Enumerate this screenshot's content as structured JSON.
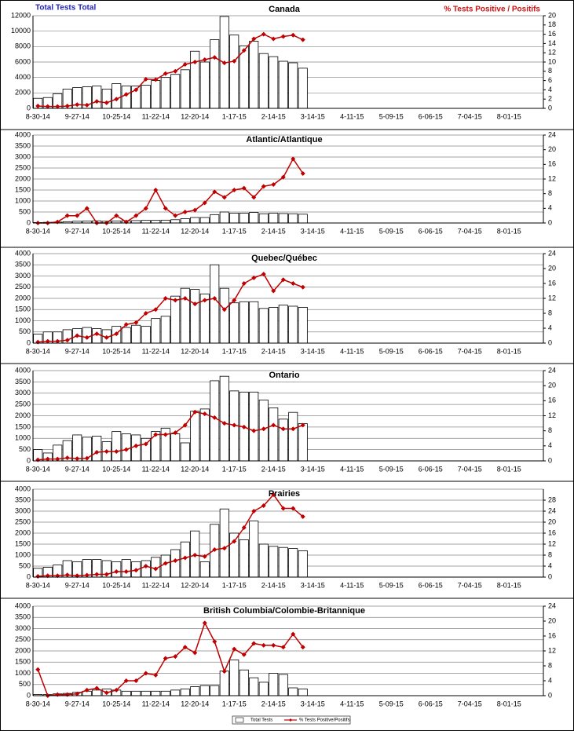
{
  "chart_data": [
    {
      "type": "bar",
      "title": "Canada",
      "y_label": "Total Tests Total",
      "y2_label": "% Tests Positive / Positifs",
      "categories": [
        "8-30-14",
        null,
        null,
        null,
        "9-27-14",
        null,
        null,
        null,
        "10-25-14",
        null,
        null,
        null,
        "11-22-14",
        null,
        null,
        null,
        "12-20-14",
        null,
        null,
        null,
        "1-17-15",
        null,
        null,
        null,
        "2-14-15",
        null,
        null,
        null,
        "3-14-15",
        null,
        null,
        null,
        "4-11-15",
        null,
        null,
        null,
        "5-09-15",
        null,
        null,
        null,
        "6-06-15",
        null,
        null,
        null,
        "7-04-15",
        null,
        null,
        null,
        "8-01-15",
        null,
        null,
        null
      ],
      "ylim": [
        0,
        12000
      ],
      "yticks": [
        0,
        2000,
        4000,
        6000,
        8000,
        10000,
        12000
      ],
      "y2lim": [
        0,
        20
      ],
      "y2ticks": [
        0,
        2,
        4,
        6,
        8,
        10,
        12,
        14,
        16,
        18,
        20
      ],
      "grid": true,
      "series": [
        {
          "color": "#ffffff",
          "values": [
            1300,
            1400,
            1900,
            2500,
            2700,
            2800,
            2900,
            2500,
            3200,
            2900,
            2900,
            3000,
            3600,
            4000,
            4400,
            5000,
            7400,
            6000,
            8900,
            11900,
            9500,
            8100,
            8700,
            7100,
            6700,
            6100,
            5900,
            5200,
            null,
            null,
            null,
            null,
            null,
            null,
            null,
            null,
            null,
            null,
            null,
            null,
            null,
            null,
            null,
            null,
            null,
            null,
            null,
            null,
            null,
            null,
            null,
            null
          ]
        },
        {
          "color": "#c00000",
          "axis": "y2",
          "values": [
            0.5,
            0.4,
            0.4,
            0.5,
            0.8,
            0.7,
            1.5,
            1.2,
            2,
            3,
            4,
            6.3,
            6.2,
            7.5,
            8,
            9.5,
            10,
            10.5,
            11,
            9.8,
            10.2,
            12.5,
            15,
            16,
            15,
            15.5,
            15.8,
            14.8,
            null,
            null,
            null,
            null,
            null,
            null,
            null,
            null,
            null,
            null,
            null,
            null,
            null,
            null,
            null,
            null,
            null,
            null,
            null,
            null,
            null,
            null,
            null,
            null
          ]
        }
      ]
    },
    {
      "type": "bar",
      "title": "Atlantic/Atlantique",
      "categories": [
        "8-30-14",
        null,
        null,
        null,
        "9-27-14",
        null,
        null,
        null,
        "10-25-14",
        null,
        null,
        null,
        "11-22-14",
        null,
        null,
        null,
        "12-20-14",
        null,
        null,
        null,
        "1-17-15",
        null,
        null,
        null,
        "2-14-15",
        null,
        null,
        null,
        "3-14-15",
        null,
        null,
        null,
        "4-11-15",
        null,
        null,
        null,
        "5-09-15",
        null,
        null,
        null,
        "6-06-15",
        null,
        null,
        null,
        "7-04-15",
        null,
        null,
        null,
        "8-01-15",
        null,
        null,
        null
      ],
      "ylim": [
        0,
        4000
      ],
      "yticks": [
        0,
        500,
        1000,
        1500,
        2000,
        2500,
        3000,
        3500,
        4000
      ],
      "y2lim": [
        0,
        24
      ],
      "y2ticks": [
        0,
        4,
        8,
        12,
        16,
        20,
        24
      ],
      "grid": true,
      "series": [
        {
          "color": "#ffffff",
          "values": [
            20,
            30,
            40,
            60,
            80,
            90,
            100,
            80,
            90,
            100,
            110,
            120,
            120,
            130,
            150,
            200,
            250,
            250,
            380,
            500,
            450,
            450,
            480,
            420,
            450,
            430,
            420,
            400,
            null,
            null,
            null,
            null,
            null,
            null,
            null,
            null,
            null,
            null,
            null,
            null,
            null,
            null,
            null,
            null,
            null,
            null,
            null,
            null,
            null,
            null,
            null,
            null
          ]
        },
        {
          "color": "#c00000",
          "axis": "y2",
          "values": [
            0,
            0,
            0.3,
            2,
            2,
            4,
            0,
            0,
            2,
            0.3,
            2,
            4,
            9,
            4,
            2,
            3,
            3.5,
            5.5,
            8.5,
            7,
            9,
            9.5,
            7,
            10,
            10.5,
            12.5,
            17.5,
            13.5,
            null,
            null,
            null,
            null,
            null,
            null,
            null,
            null,
            null,
            null,
            null,
            null,
            null,
            null,
            null,
            null,
            null,
            null,
            null,
            null,
            null,
            null,
            null,
            null
          ]
        }
      ]
    },
    {
      "type": "bar",
      "title": "Quebec/Québec",
      "categories": [
        "8-30-14",
        null,
        null,
        null,
        "9-27-14",
        null,
        null,
        null,
        "10-25-14",
        null,
        null,
        null,
        "11-22-14",
        null,
        null,
        null,
        "12-20-14",
        null,
        null,
        null,
        "1-17-15",
        null,
        null,
        null,
        "2-14-15",
        null,
        null,
        null,
        "3-14-15",
        null,
        null,
        null,
        "4-11-15",
        null,
        null,
        null,
        "5-09-15",
        null,
        null,
        null,
        "6-06-15",
        null,
        null,
        null,
        "7-04-15",
        null,
        null,
        null,
        "8-01-15",
        null,
        null,
        null
      ],
      "ylim": [
        0,
        4000
      ],
      "yticks": [
        0,
        500,
        1000,
        1500,
        2000,
        2500,
        3000,
        3500,
        4000
      ],
      "y2lim": [
        0,
        24
      ],
      "y2ticks": [
        0,
        4,
        8,
        12,
        16,
        20,
        24
      ],
      "grid": true,
      "series": [
        {
          "color": "#ffffff",
          "values": [
            400,
            500,
            500,
            600,
            650,
            700,
            650,
            600,
            750,
            700,
            800,
            750,
            1100,
            1200,
            2100,
            2450,
            2400,
            2200,
            3500,
            2450,
            1800,
            1850,
            1850,
            1550,
            1600,
            1700,
            1650,
            1600,
            null,
            null,
            null,
            null,
            null,
            null,
            null,
            null,
            null,
            null,
            null,
            null,
            null,
            null,
            null,
            null,
            null,
            null,
            null,
            null,
            null,
            null,
            null,
            null
          ]
        },
        {
          "color": "#c00000",
          "axis": "y2",
          "values": [
            0.3,
            0.5,
            0.5,
            0.8,
            2,
            1.5,
            2.5,
            1.5,
            2.5,
            5,
            5.5,
            8,
            9,
            12,
            11.5,
            12,
            10.5,
            11.5,
            12,
            9,
            11.5,
            16,
            17.5,
            18.5,
            14,
            17,
            16,
            15,
            null,
            null,
            null,
            null,
            null,
            null,
            null,
            null,
            null,
            null,
            null,
            null,
            null,
            null,
            null,
            null,
            null,
            null,
            null,
            null,
            null,
            null,
            null,
            null
          ]
        }
      ]
    },
    {
      "type": "bar",
      "title": "Ontario",
      "categories": [
        "8-30-14",
        null,
        null,
        null,
        "9-27-14",
        null,
        null,
        null,
        "10-25-14",
        null,
        null,
        null,
        "11-22-14",
        null,
        null,
        null,
        "12-20-14",
        null,
        null,
        null,
        "1-17-15",
        null,
        null,
        null,
        "2-14-15",
        null,
        null,
        null,
        "3-14-15",
        null,
        null,
        null,
        "4-11-15",
        null,
        null,
        null,
        "5-09-15",
        null,
        null,
        null,
        "6-06-15",
        null,
        null,
        null,
        "7-04-15",
        null,
        null,
        null,
        "8-01-15",
        null,
        null,
        null
      ],
      "ylim": [
        0,
        4000
      ],
      "yticks": [
        0,
        500,
        1000,
        1500,
        2000,
        2500,
        3000,
        3500,
        4000
      ],
      "y2lim": [
        0,
        24
      ],
      "y2ticks": [
        0,
        4,
        8,
        12,
        16,
        20,
        24
      ],
      "grid": true,
      "series": [
        {
          "color": "#ffffff",
          "values": [
            500,
            350,
            700,
            900,
            1150,
            1050,
            1100,
            850,
            1300,
            1200,
            1150,
            1000,
            1300,
            1450,
            1200,
            800,
            2200,
            2300,
            3550,
            3750,
            3100,
            3050,
            3050,
            2700,
            2350,
            1850,
            2150,
            1650,
            null,
            null,
            null,
            null,
            null,
            null,
            null,
            null,
            null,
            null,
            null,
            null,
            null,
            null,
            null,
            null,
            null,
            null,
            null,
            null,
            null,
            null,
            null,
            null
          ]
        },
        {
          "color": "#c00000",
          "axis": "y2",
          "values": [
            0.3,
            0.5,
            0.5,
            0.8,
            0.6,
            0.7,
            2.3,
            2.5,
            2.5,
            3,
            4,
            4.5,
            7,
            7,
            7.5,
            9.5,
            13,
            12.5,
            11.5,
            10,
            9.5,
            9,
            8,
            8.5,
            9.5,
            8.5,
            8.5,
            9.5,
            null,
            null,
            null,
            null,
            null,
            null,
            null,
            null,
            null,
            null,
            null,
            null,
            null,
            null,
            null,
            null,
            null,
            null,
            null,
            null,
            null,
            null,
            null,
            null
          ]
        }
      ]
    },
    {
      "type": "bar",
      "title": "Prairies",
      "categories": [
        "8-30-14",
        null,
        null,
        null,
        "9-27-14",
        null,
        null,
        null,
        "10-25-14",
        null,
        null,
        null,
        "11-22-14",
        null,
        null,
        null,
        "12-20-14",
        null,
        null,
        null,
        "1-17-15",
        null,
        null,
        null,
        "2-14-15",
        null,
        null,
        null,
        "3-14-15",
        null,
        null,
        null,
        "4-11-15",
        null,
        null,
        null,
        "5-09-15",
        null,
        null,
        null,
        "6-06-15",
        null,
        null,
        null,
        "7-04-15",
        null,
        null,
        null,
        "8-01-15",
        null,
        null,
        null
      ],
      "ylim": [
        0,
        4000
      ],
      "yticks": [
        0,
        500,
        1000,
        1500,
        2000,
        2500,
        3000,
        3500,
        4000
      ],
      "y2lim": [
        0,
        32
      ],
      "y2ticks": [
        0,
        4,
        8,
        12,
        16,
        20,
        24,
        28
      ],
      "grid": true,
      "series": [
        {
          "color": "#ffffff",
          "values": [
            400,
            450,
            550,
            750,
            700,
            800,
            800,
            750,
            700,
            800,
            700,
            750,
            900,
            1000,
            1250,
            1600,
            2100,
            700,
            2400,
            3100,
            2000,
            1700,
            2550,
            1500,
            1400,
            1350,
            1300,
            1200,
            null,
            null,
            null,
            null,
            null,
            null,
            null,
            null,
            null,
            null,
            null,
            null,
            null,
            null,
            null,
            null,
            null,
            null,
            null,
            null,
            null,
            null,
            null,
            null
          ]
        },
        {
          "color": "#c00000",
          "axis": "y2",
          "values": [
            0.3,
            0.5,
            0.5,
            0.8,
            0.5,
            0.7,
            1,
            1,
            2,
            2,
            2.5,
            4,
            3,
            5,
            6,
            7,
            8,
            7.5,
            10,
            10.5,
            13,
            18,
            24,
            26,
            30,
            25,
            25,
            22,
            null,
            null,
            null,
            null,
            null,
            null,
            null,
            null,
            null,
            null,
            null,
            null,
            null,
            null,
            null,
            null,
            null,
            null,
            null,
            null,
            null,
            null,
            null,
            null
          ]
        }
      ]
    },
    {
      "type": "bar",
      "title": "British Columbia/Colombie-Britannique",
      "categories": [
        "8-30-14",
        null,
        null,
        null,
        "9-27-14",
        null,
        null,
        null,
        "10-25-14",
        null,
        null,
        null,
        "11-22-14",
        null,
        null,
        null,
        "12-20-14",
        null,
        null,
        null,
        "1-17-15",
        null,
        null,
        null,
        "2-14-15",
        null,
        null,
        null,
        "3-14-15",
        null,
        null,
        null,
        "4-11-15",
        null,
        null,
        null,
        "5-09-15",
        null,
        null,
        null,
        "6-06-15",
        null,
        null,
        null,
        "7-04-15",
        null,
        null,
        null,
        "8-01-15",
        null,
        null,
        null
      ],
      "ylim": [
        0,
        4000
      ],
      "yticks": [
        0,
        500,
        1000,
        1500,
        2000,
        2500,
        3000,
        3500,
        4000
      ],
      "y2lim": [
        0,
        24
      ],
      "y2ticks": [
        0,
        4,
        8,
        12,
        16,
        20,
        24
      ],
      "grid": true,
      "series": [
        {
          "name": "Total Tests",
          "color": "#ffffff",
          "values": [
            50,
            50,
            80,
            100,
            150,
            200,
            250,
            300,
            250,
            200,
            200,
            200,
            200,
            200,
            250,
            300,
            400,
            450,
            450,
            1100,
            1600,
            1150,
            800,
            600,
            1000,
            950,
            350,
            300,
            null,
            null,
            null,
            null,
            null,
            null,
            null,
            null,
            null,
            null,
            null,
            null,
            null,
            null,
            null,
            null,
            null,
            null,
            null,
            null,
            null,
            null,
            null,
            null
          ]
        },
        {
          "name": "% Tests Positive/Positifs",
          "color": "#c00000",
          "axis": "y2",
          "values": [
            7,
            0,
            0.3,
            0.3,
            0.5,
            1.5,
            2,
            0.8,
            1.5,
            4,
            4,
            6,
            5.5,
            10,
            10.5,
            13,
            11.5,
            19.5,
            14.5,
            6.5,
            12.5,
            11,
            14,
            13.5,
            13.5,
            13,
            16.5,
            13,
            null,
            null,
            null,
            null,
            null,
            null,
            null,
            null,
            null,
            null,
            null,
            null,
            null,
            null,
            null,
            null,
            null,
            null,
            null,
            null,
            null,
            null,
            null,
            null
          ]
        }
      ]
    }
  ]
}
